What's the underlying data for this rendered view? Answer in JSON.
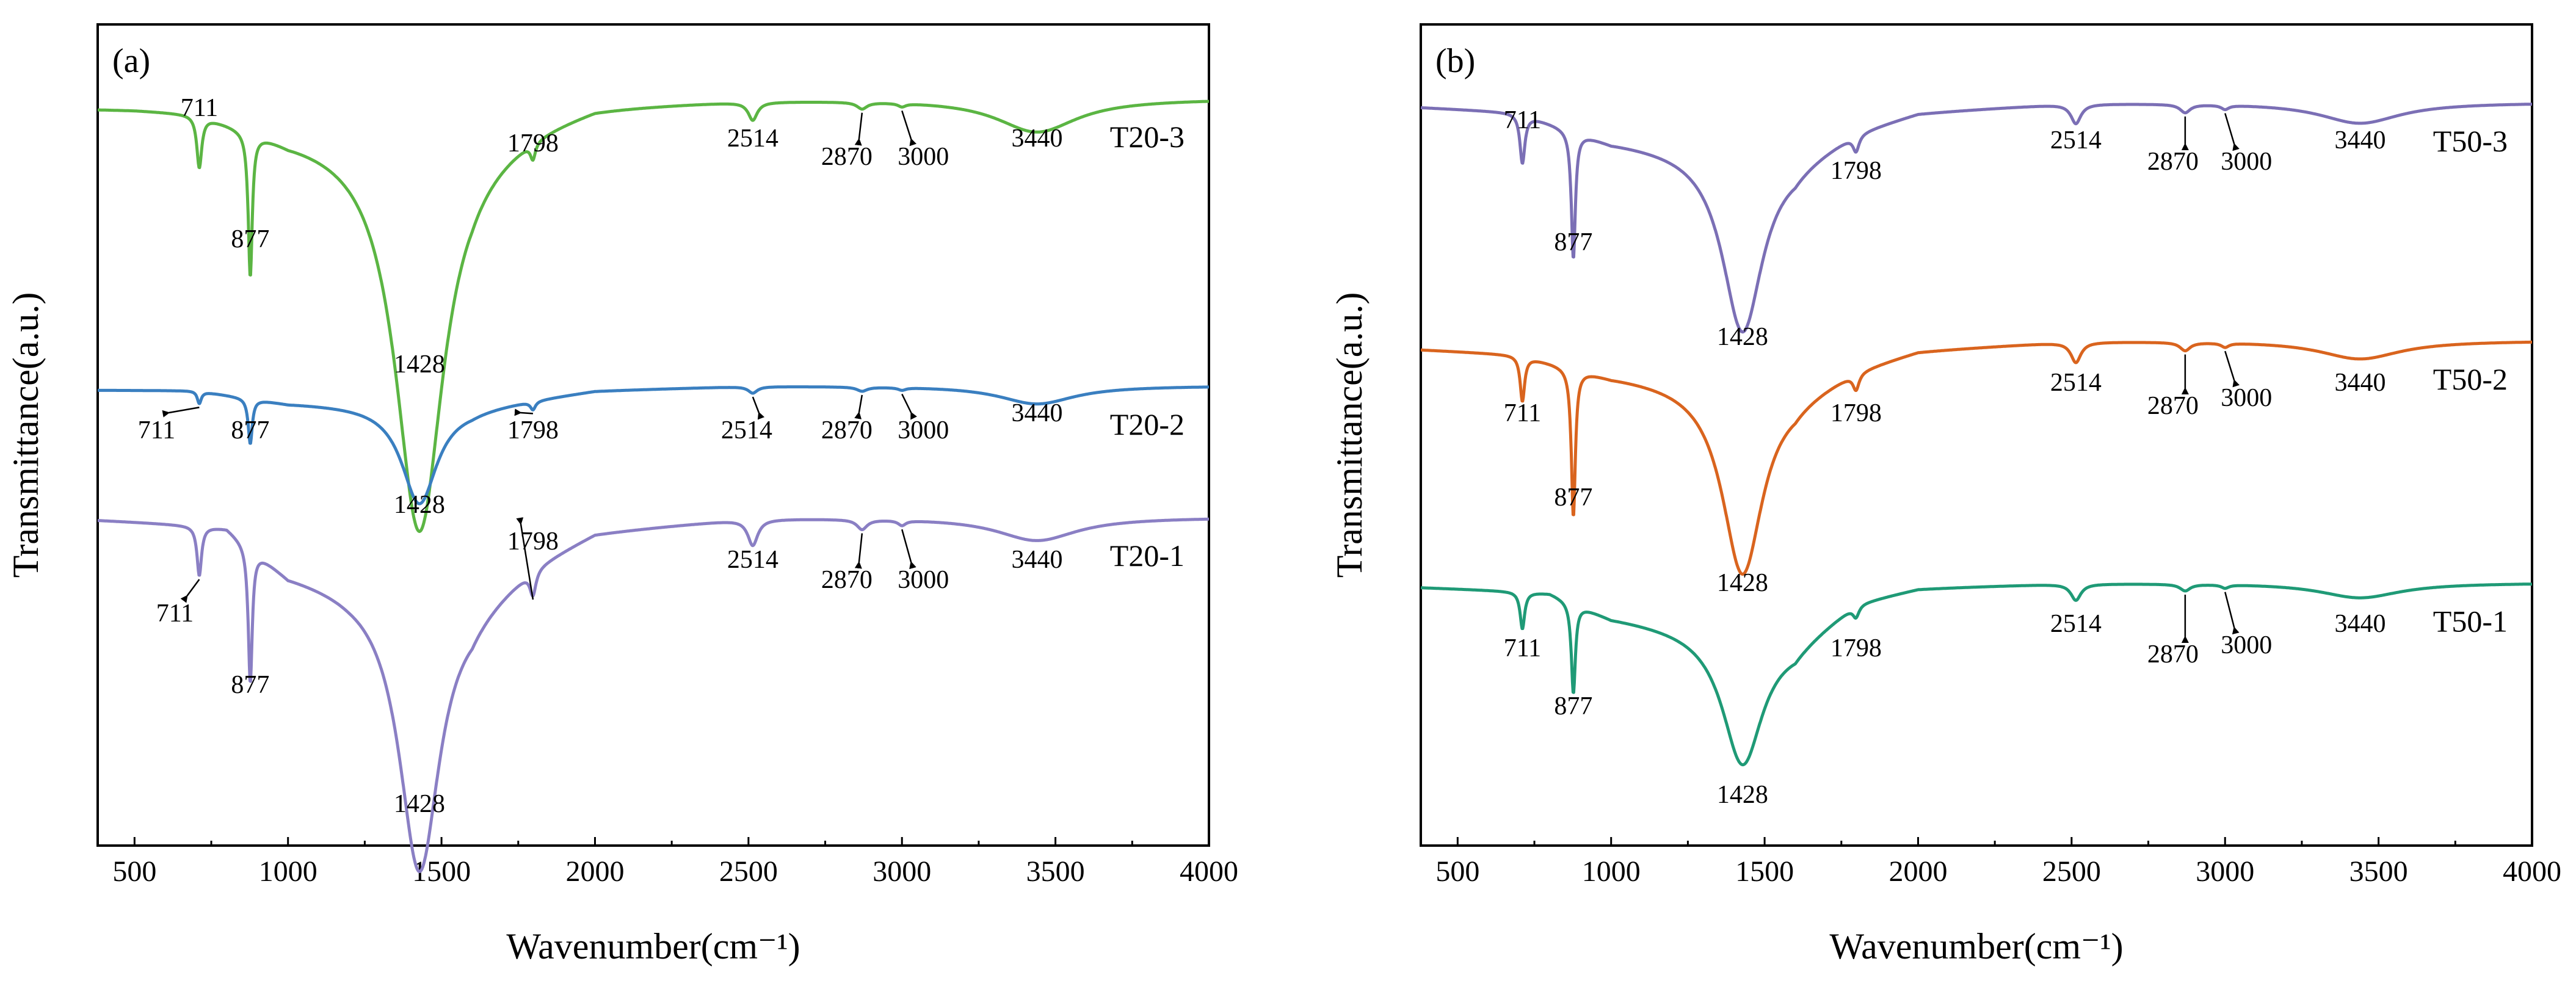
{
  "chart_data": [
    {
      "type": "line",
      "panel_label": "(a)",
      "xlabel": "Wavenumber(cm⁻¹)",
      "ylabel": "Transmittance(a.u.)",
      "xlim": [
        380,
        4000
      ],
      "xticks": [
        "500",
        "1000",
        "1500",
        "2000",
        "2500",
        "3000",
        "3500",
        "4000"
      ],
      "grid": false,
      "series": [
        {
          "name": "T20-3",
          "color": "#5bb543",
          "baseline": 0.91,
          "trend": [
            [
              380,
              0.9
            ],
            [
              500,
              0.9
            ],
            [
              700,
              0.898
            ],
            [
              1000,
              0.87
            ],
            [
              1600,
              0.86
            ],
            [
              1800,
              0.885
            ],
            [
              2000,
              0.905
            ],
            [
              2500,
              0.91
            ],
            [
              4000,
              0.91
            ]
          ],
          "peaks": [
            {
              "wavenumber": 711,
              "label": "711",
              "depth": 0.063,
              "width": 10
            },
            {
              "wavenumber": 877,
              "label": "877",
              "depth": 0.175,
              "width": 8
            },
            {
              "wavenumber": 1428,
              "label": "1428",
              "depth": 0.48,
              "width": 95
            },
            {
              "wavenumber": 1798,
              "label": "1798",
              "depth": 0.02,
              "width": 10
            },
            {
              "wavenumber": 2514,
              "label": "2514",
              "depth": 0.022,
              "width": 18
            },
            {
              "wavenumber": 2870,
              "label": "2870",
              "depth": 0.008,
              "width": 20
            },
            {
              "wavenumber": 3000,
              "label": "3000",
              "depth": 0.004,
              "width": 15
            },
            {
              "wavenumber": 3440,
              "label": "3440",
              "depth": 0.04,
              "width": 160
            }
          ]
        },
        {
          "name": "T20-2",
          "color": "#3a7fc0",
          "baseline": 0.56,
          "trend": [
            [
              380,
              0.555
            ],
            [
              700,
              0.555
            ],
            [
              1000,
              0.54
            ],
            [
              1600,
              0.535
            ],
            [
              2000,
              0.555
            ],
            [
              2500,
              0.56
            ],
            [
              4000,
              0.56
            ]
          ],
          "peaks": [
            {
              "wavenumber": 711,
              "label": "711",
              "depth": 0.015,
              "width": 8
            },
            {
              "wavenumber": 877,
              "label": "877",
              "depth": 0.055,
              "width": 8
            },
            {
              "wavenumber": 1428,
              "label": "1428",
              "depth": 0.12,
              "width": 70
            },
            {
              "wavenumber": 1798,
              "label": "1798",
              "depth": 0.01,
              "width": 10
            },
            {
              "wavenumber": 2514,
              "label": "2514",
              "depth": 0.008,
              "width": 18
            },
            {
              "wavenumber": 2870,
              "label": "2870",
              "depth": 0.005,
              "width": 20
            },
            {
              "wavenumber": 3000,
              "label": "3000",
              "depth": 0.003,
              "width": 15
            },
            {
              "wavenumber": 3440,
              "label": "3440",
              "depth": 0.022,
              "width": 150
            }
          ]
        },
        {
          "name": "T20-1",
          "color": "#8a7fc4",
          "baseline": 0.4,
          "trend": [
            [
              380,
              0.398
            ],
            [
              800,
              0.392
            ],
            [
              1000,
              0.335
            ],
            [
              1200,
              0.32
            ],
            [
              1600,
              0.3
            ],
            [
              1800,
              0.35
            ],
            [
              2000,
              0.385
            ],
            [
              2500,
              0.4
            ],
            [
              4000,
              0.4
            ]
          ],
          "peaks": [
            {
              "wavenumber": 711,
              "label": "711",
              "depth": 0.06,
              "width": 9
            },
            {
              "wavenumber": 877,
              "label": "877",
              "depth": 0.165,
              "width": 8
            },
            {
              "wavenumber": 1428,
              "label": "1428",
              "depth": 0.34,
              "width": 80
            },
            {
              "wavenumber": 1798,
              "label": "1798",
              "depth": 0.03,
              "width": 12
            },
            {
              "wavenumber": 2514,
              "label": "2514",
              "depth": 0.032,
              "width": 20
            },
            {
              "wavenumber": 2870,
              "label": "2870",
              "depth": 0.012,
              "width": 20
            },
            {
              "wavenumber": 3000,
              "label": "3000",
              "depth": 0.006,
              "width": 15
            },
            {
              "wavenumber": 3440,
              "label": "3440",
              "depth": 0.028,
              "width": 160
            }
          ]
        }
      ]
    },
    {
      "type": "line",
      "panel_label": "(b)",
      "xlabel": "Wavenumber(cm⁻¹)",
      "ylabel": "Transmittance(a.u.)",
      "xlim": [
        380,
        4000
      ],
      "xticks": [
        "500",
        "1000",
        "1500",
        "2000",
        "2500",
        "3000",
        "3500",
        "4000"
      ],
      "grid": false,
      "series": [
        {
          "name": "T50-3",
          "color": "#7b6fb5",
          "baseline": 0.905,
          "trend": [
            [
              380,
              0.9
            ],
            [
              700,
              0.895
            ],
            [
              1000,
              0.86
            ],
            [
              1600,
              0.84
            ],
            [
              1800,
              0.875
            ],
            [
              2000,
              0.895
            ],
            [
              2500,
              0.905
            ],
            [
              4000,
              0.905
            ]
          ],
          "peaks": [
            {
              "wavenumber": 711,
              "label": "711",
              "depth": 0.06,
              "width": 10
            },
            {
              "wavenumber": 877,
              "label": "877",
              "depth": 0.155,
              "width": 8
            },
            {
              "wavenumber": 1428,
              "label": "1428",
              "depth": 0.22,
              "width": 80
            },
            {
              "wavenumber": 1798,
              "label": "1798",
              "depth": 0.02,
              "width": 12
            },
            {
              "wavenumber": 2514,
              "label": "2514",
              "depth": 0.024,
              "width": 20
            },
            {
              "wavenumber": 2870,
              "label": "2870",
              "depth": 0.01,
              "width": 20
            },
            {
              "wavenumber": 3000,
              "label": "3000",
              "depth": 0.005,
              "width": 15
            },
            {
              "wavenumber": 3440,
              "label": "3440",
              "depth": 0.025,
              "width": 160
            }
          ]
        },
        {
          "name": "T50-2",
          "color": "#d9641e",
          "baseline": 0.615,
          "trend": [
            [
              380,
              0.605
            ],
            [
              700,
              0.6
            ],
            [
              1000,
              0.575
            ],
            [
              1600,
              0.555
            ],
            [
              1800,
              0.585
            ],
            [
              2000,
              0.605
            ],
            [
              2500,
              0.615
            ],
            [
              4000,
              0.615
            ]
          ],
          "peaks": [
            {
              "wavenumber": 711,
              "label": "711",
              "depth": 0.055,
              "width": 9
            },
            {
              "wavenumber": 877,
              "label": "877",
              "depth": 0.18,
              "width": 8
            },
            {
              "wavenumber": 1428,
              "label": "1428",
              "depth": 0.23,
              "width": 80
            },
            {
              "wavenumber": 1798,
              "label": "1798",
              "depth": 0.02,
              "width": 12
            },
            {
              "wavenumber": 2514,
              "label": "2514",
              "depth": 0.025,
              "width": 20
            },
            {
              "wavenumber": 2870,
              "label": "2870",
              "depth": 0.01,
              "width": 20
            },
            {
              "wavenumber": 3000,
              "label": "3000",
              "depth": 0.005,
              "width": 15
            },
            {
              "wavenumber": 3440,
              "label": "3440",
              "depth": 0.022,
              "width": 160
            }
          ]
        },
        {
          "name": "T50-1",
          "color": "#1f9a76",
          "baseline": 0.32,
          "trend": [
            [
              380,
              0.315
            ],
            [
              800,
              0.31
            ],
            [
              1000,
              0.28
            ],
            [
              1200,
              0.27
            ],
            [
              1600,
              0.25
            ],
            [
              1800,
              0.3
            ],
            [
              2000,
              0.315
            ],
            [
              2500,
              0.32
            ],
            [
              4000,
              0.32
            ]
          ],
          "peaks": [
            {
              "wavenumber": 711,
              "label": "711",
              "depth": 0.045,
              "width": 9
            },
            {
              "wavenumber": 877,
              "label": "877",
              "depth": 0.11,
              "width": 8
            },
            {
              "wavenumber": 1428,
              "label": "1428",
              "depth": 0.16,
              "width": 80
            },
            {
              "wavenumber": 1798,
              "label": "1798",
              "depth": 0.015,
              "width": 12
            },
            {
              "wavenumber": 2514,
              "label": "2514",
              "depth": 0.02,
              "width": 20
            },
            {
              "wavenumber": 2870,
              "label": "2870",
              "depth": 0.008,
              "width": 20
            },
            {
              "wavenumber": 3000,
              "label": "3000",
              "depth": 0.004,
              "width": 15
            },
            {
              "wavenumber": 3440,
              "label": "3440",
              "depth": 0.018,
              "width": 160
            }
          ]
        }
      ]
    }
  ]
}
